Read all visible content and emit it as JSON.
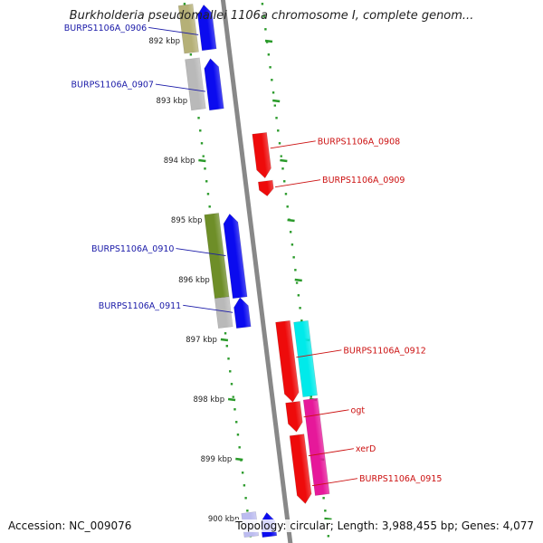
{
  "header": {
    "title": "Burkholderia pseudomallei 1106a chromosome I, complete genom..."
  },
  "footer": {
    "accession": "Accession: NC_009076",
    "summary": "Topology: circular; Length: 3,988,455 bp; Genes: 4,077"
  },
  "map": {
    "range_kbp": [
      891.4,
      900.3
    ],
    "ticks": [
      {
        "kbp": 892,
        "label": "892 kbp"
      },
      {
        "kbp": 893,
        "label": "893 kbp"
      },
      {
        "kbp": 894,
        "label": "894 kbp"
      },
      {
        "kbp": 895,
        "label": "895 kbp"
      },
      {
        "kbp": 896,
        "label": "896 kbp"
      },
      {
        "kbp": 897,
        "label": "897 kbp"
      },
      {
        "kbp": 898,
        "label": "898 kbp"
      },
      {
        "kbp": 899,
        "label": "899 kbp"
      },
      {
        "kbp": 900,
        "label": "900 kbp"
      }
    ],
    "colors": {
      "backbone": "#888888",
      "tick_ring": "#2a9a2a",
      "minus_label": "#1a1aa8",
      "plus_label": "#cc1111"
    },
    "features": [
      {
        "strand": "-",
        "ring": 2,
        "color": "#b5b077",
        "start": 891.4,
        "end": 892.2,
        "arrow": false
      },
      {
        "strand": "-",
        "ring": 1,
        "color": "#0b0bef",
        "start": 891.4,
        "end": 892.15,
        "arrow": true
      },
      {
        "strand": "-",
        "ring": 2,
        "color": "#b9b9b9",
        "start": 892.3,
        "end": 893.15,
        "arrow": false
      },
      {
        "strand": "-",
        "ring": 1,
        "color": "#0b0bef",
        "start": 892.3,
        "end": 893.15,
        "arrow": true
      },
      {
        "strand": "+",
        "ring": 1,
        "color": "#ee0b0b",
        "start": 893.55,
        "end": 894.3,
        "arrow": true
      },
      {
        "strand": "+",
        "ring": 1,
        "color": "#ee0b0b",
        "start": 894.35,
        "end": 894.6,
        "arrow": true
      },
      {
        "strand": "-",
        "ring": 2,
        "color": "#6e8e28",
        "start": 894.9,
        "end": 896.3,
        "arrow": false
      },
      {
        "strand": "-",
        "ring": 1,
        "color": "#0b0bef",
        "start": 894.9,
        "end": 896.3,
        "arrow": true
      },
      {
        "strand": "-",
        "ring": 2,
        "color": "#b9b9b9",
        "start": 896.3,
        "end": 896.8,
        "arrow": false
      },
      {
        "strand": "-",
        "ring": 1,
        "color": "#0b0bef",
        "start": 896.3,
        "end": 896.8,
        "arrow": true
      },
      {
        "strand": "+",
        "ring": 1,
        "color": "#ee0b0b",
        "start": 896.7,
        "end": 898.05,
        "arrow": true
      },
      {
        "strand": "+",
        "ring": 2,
        "color": "#00eaea",
        "start": 896.7,
        "end": 897.95,
        "arrow": false
      },
      {
        "strand": "+",
        "ring": 1,
        "color": "#ee0b0b",
        "start": 898.05,
        "end": 898.55,
        "arrow": true
      },
      {
        "strand": "+",
        "ring": 2,
        "color": "#e6189a",
        "start": 898.0,
        "end": 899.6,
        "arrow": false
      },
      {
        "strand": "+",
        "ring": 1,
        "color": "#ee0b0b",
        "start": 898.6,
        "end": 899.75,
        "arrow": true
      },
      {
        "strand": "-",
        "ring": 2,
        "color": "#bcbcf0",
        "start": 899.9,
        "end": 900.3,
        "arrow": false
      },
      {
        "strand": "-",
        "ring": 1,
        "color": "#0b0bef",
        "start": 899.9,
        "end": 900.3,
        "arrow": true
      }
    ],
    "gene_labels": [
      {
        "text": "BURPS1106A_0906",
        "side": "left",
        "kbp": 891.9
      },
      {
        "text": "BURPS1106A_0907",
        "side": "left",
        "kbp": 892.85
      },
      {
        "text": "BURPS1106A_0908",
        "side": "right",
        "kbp": 893.8
      },
      {
        "text": "BURPS1106A_0909",
        "side": "right",
        "kbp": 894.45
      },
      {
        "text": "BURPS1106A_0910",
        "side": "left",
        "kbp": 895.6
      },
      {
        "text": "BURPS1106A_0911",
        "side": "left",
        "kbp": 896.55
      },
      {
        "text": "BURPS1106A_0912",
        "side": "right",
        "kbp": 897.3
      },
      {
        "text": "ogt",
        "side": "right",
        "kbp": 898.3
      },
      {
        "text": "xerD",
        "side": "right",
        "kbp": 898.95
      },
      {
        "text": "BURPS1106A_0915",
        "side": "right",
        "kbp": 899.45
      }
    ]
  }
}
